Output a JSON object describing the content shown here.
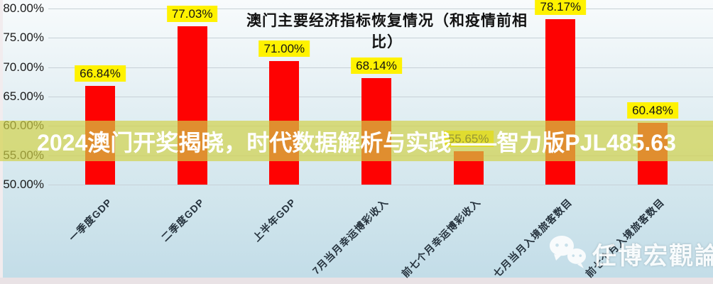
{
  "chart_data": {
    "type": "bar",
    "title": "澳门主要经济指标恢复情况（和疫情前相比）",
    "categories": [
      "一季度GDP",
      "二季度GDP",
      "上半年GDP",
      "7月当月幸运博彩收入",
      "前七个月幸运博彩收入",
      "七月当月入境旅客数目",
      "前七个月入境旅客数目"
    ],
    "values": [
      66.84,
      77.03,
      71.0,
      68.14,
      55.65,
      78.17,
      60.48
    ],
    "value_labels": [
      "66.84%",
      "77.03%",
      "71.00%",
      "68.14%",
      "55.65%",
      "78.17%",
      "60.48%"
    ],
    "xlabel": "",
    "ylabel": "",
    "ylim": [
      50,
      80
    ],
    "yticks": [
      "80.00%",
      "75.00%",
      "70.00%",
      "65.00%",
      "60.00%",
      "55.00%",
      "50.00%"
    ],
    "grid": true,
    "legend": false,
    "bar_color": "#fe0202",
    "value_label_bg": "#fff200",
    "value_label_color": "#141414"
  },
  "banner": {
    "text": "2024澳门开奖揭晓，时代数据解析与实践——智力版PJL485.63",
    "text_color": "#ffffff",
    "overlay_color_rgba": "rgba(210,210,70,0.68)"
  },
  "watermark": {
    "icon": "wechat-icon",
    "text": "任博宏觀論道",
    "color": "#ffffff"
  }
}
